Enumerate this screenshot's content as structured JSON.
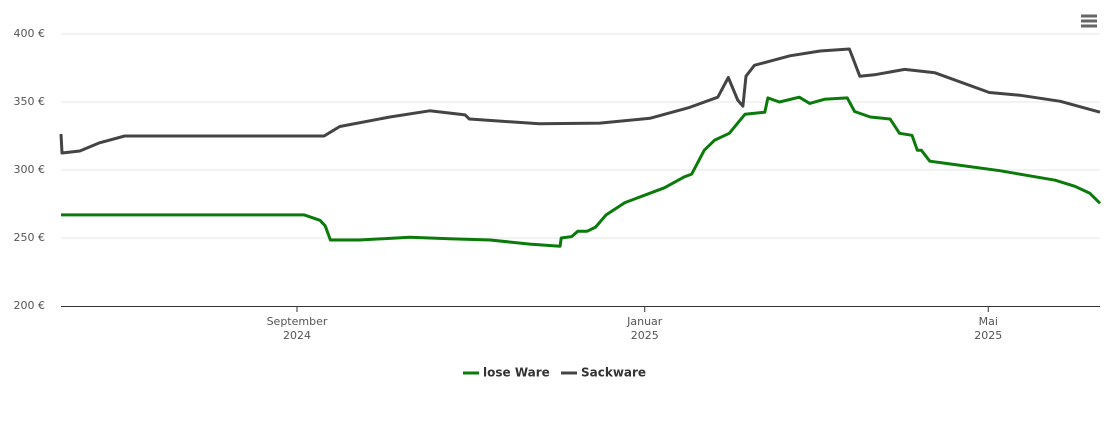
{
  "chart_data": {
    "type": "line",
    "xlim": [
      2024.441,
      2025.436
    ],
    "xticks": [
      {
        "value": 2024.667,
        "label": "September 2024"
      },
      {
        "value": 2025.0,
        "label": "Januar 2025"
      },
      {
        "value": 2025.329,
        "label": "Mai 2025"
      }
    ],
    "ylim": [
      200,
      400
    ],
    "yticks": [
      {
        "value": 200,
        "label": "200 €"
      },
      {
        "value": 250,
        "label": "250 €"
      },
      {
        "value": 300,
        "label": "300 €"
      },
      {
        "value": 350,
        "label": "350 €"
      },
      {
        "value": 400,
        "label": "400 €"
      }
    ],
    "grid": true,
    "legend": "bottom",
    "series": [
      {
        "name": "lose Ware",
        "color": "#0a7a0a",
        "x": [
          2024.441,
          2024.674,
          2024.689,
          2024.694,
          2024.699,
          2024.727,
          2024.775,
          2024.813,
          2024.852,
          2024.89,
          2024.919,
          2024.92,
          2024.93,
          2024.936,
          2024.945,
          2024.953,
          2024.963,
          2024.981,
          2025.0,
          2025.019,
          2025.038,
          2025.045,
          2025.057,
          2025.067,
          2025.081,
          2025.096,
          2025.115,
          2025.118,
          2025.129,
          2025.148,
          2025.158,
          2025.172,
          2025.194,
          2025.201,
          2025.216,
          2025.235,
          2025.244,
          2025.256,
          2025.261,
          2025.265,
          2025.273,
          2025.292,
          2025.34,
          2025.393,
          2025.412,
          2025.426,
          2025.436
        ],
        "values": [
          267,
          267,
          263,
          259,
          248.5,
          248.5,
          250.5,
          249.5,
          248.5,
          245.5,
          244,
          250,
          251,
          255,
          255,
          258,
          267,
          276,
          281.5,
          287,
          295,
          297,
          314.5,
          322,
          327,
          341,
          342.5,
          353,
          350,
          353.5,
          349,
          352,
          353,
          343,
          339,
          337.5,
          327,
          325.5,
          314.5,
          314.5,
          306.5,
          304.5,
          299.5,
          292.5,
          288,
          283,
          275.5
        ]
      },
      {
        "name": "Sackware",
        "color": "#444444",
        "x": [
          2024.441,
          2024.442,
          2024.459,
          2024.478,
          2024.502,
          2024.693,
          2024.708,
          2024.756,
          2024.794,
          2024.828,
          2024.832,
          2024.899,
          2024.957,
          2025.005,
          2025.043,
          2025.07,
          2025.08,
          2025.089,
          2025.094,
          2025.097,
          2025.105,
          2025.139,
          2025.168,
          2025.196,
          2025.206,
          2025.22,
          2025.249,
          2025.278,
          2025.33,
          2025.359,
          2025.398,
          2025.436
        ],
        "values": [
          326.5,
          312.5,
          314,
          320,
          325,
          325,
          332,
          339,
          343.5,
          340.5,
          337.5,
          334,
          334.5,
          338,
          346,
          353.5,
          368,
          351.5,
          347,
          369,
          377,
          384,
          387.5,
          389,
          369,
          370,
          374,
          371.5,
          357,
          355,
          350.5,
          342.5
        ]
      }
    ]
  }
}
